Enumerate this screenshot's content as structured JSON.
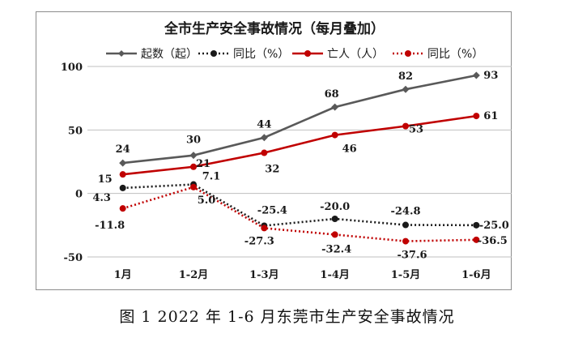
{
  "caption": "图 1   2022 年 1-6 月东莞市生产安全事故情况",
  "chart_data": {
    "type": "line",
    "title": "全市生产安全事故情况（每月叠加）",
    "categories": [
      "1月",
      "1-2月",
      "1-3月",
      "1-4月",
      "1-5月",
      "1-6月"
    ],
    "ylim": [
      -50,
      100
    ],
    "yticks": [
      -50,
      0,
      50,
      100
    ],
    "grid": true,
    "legend_position": "top",
    "series": [
      {
        "name": "起数（起）",
        "values": [
          24,
          30,
          44,
          68,
          82,
          93
        ],
        "labels": [
          "24",
          "30",
          "44",
          "68",
          "82",
          "93"
        ],
        "color": "#595959",
        "style": "solid",
        "marker": "diamond"
      },
      {
        "name": "同比（%）",
        "values": [
          4.3,
          7.1,
          -25.4,
          -20.0,
          -24.8,
          -25.0
        ],
        "labels": [
          "4.3",
          "7.1",
          "-25.4",
          "-20.0",
          "-24.8",
          "-25.0"
        ],
        "color": "#1a1a1a",
        "style": "dotted",
        "marker": "circle"
      },
      {
        "name": "亡人（人）",
        "values": [
          15,
          21,
          32,
          46,
          53,
          61
        ],
        "labels": [
          "15",
          "21",
          "32",
          "46",
          "53",
          "61"
        ],
        "color": "#c00000",
        "style": "solid",
        "marker": "circle"
      },
      {
        "name": "同比（%）",
        "values": [
          -11.8,
          5.0,
          -27.3,
          -32.4,
          -37.6,
          -36.5
        ],
        "labels": [
          "-11.8",
          "5.0",
          "-27.3",
          "-32.4",
          "-37.6",
          "-36.5"
        ],
        "color": "#c00000",
        "style": "dotted",
        "marker": "circle"
      }
    ]
  }
}
